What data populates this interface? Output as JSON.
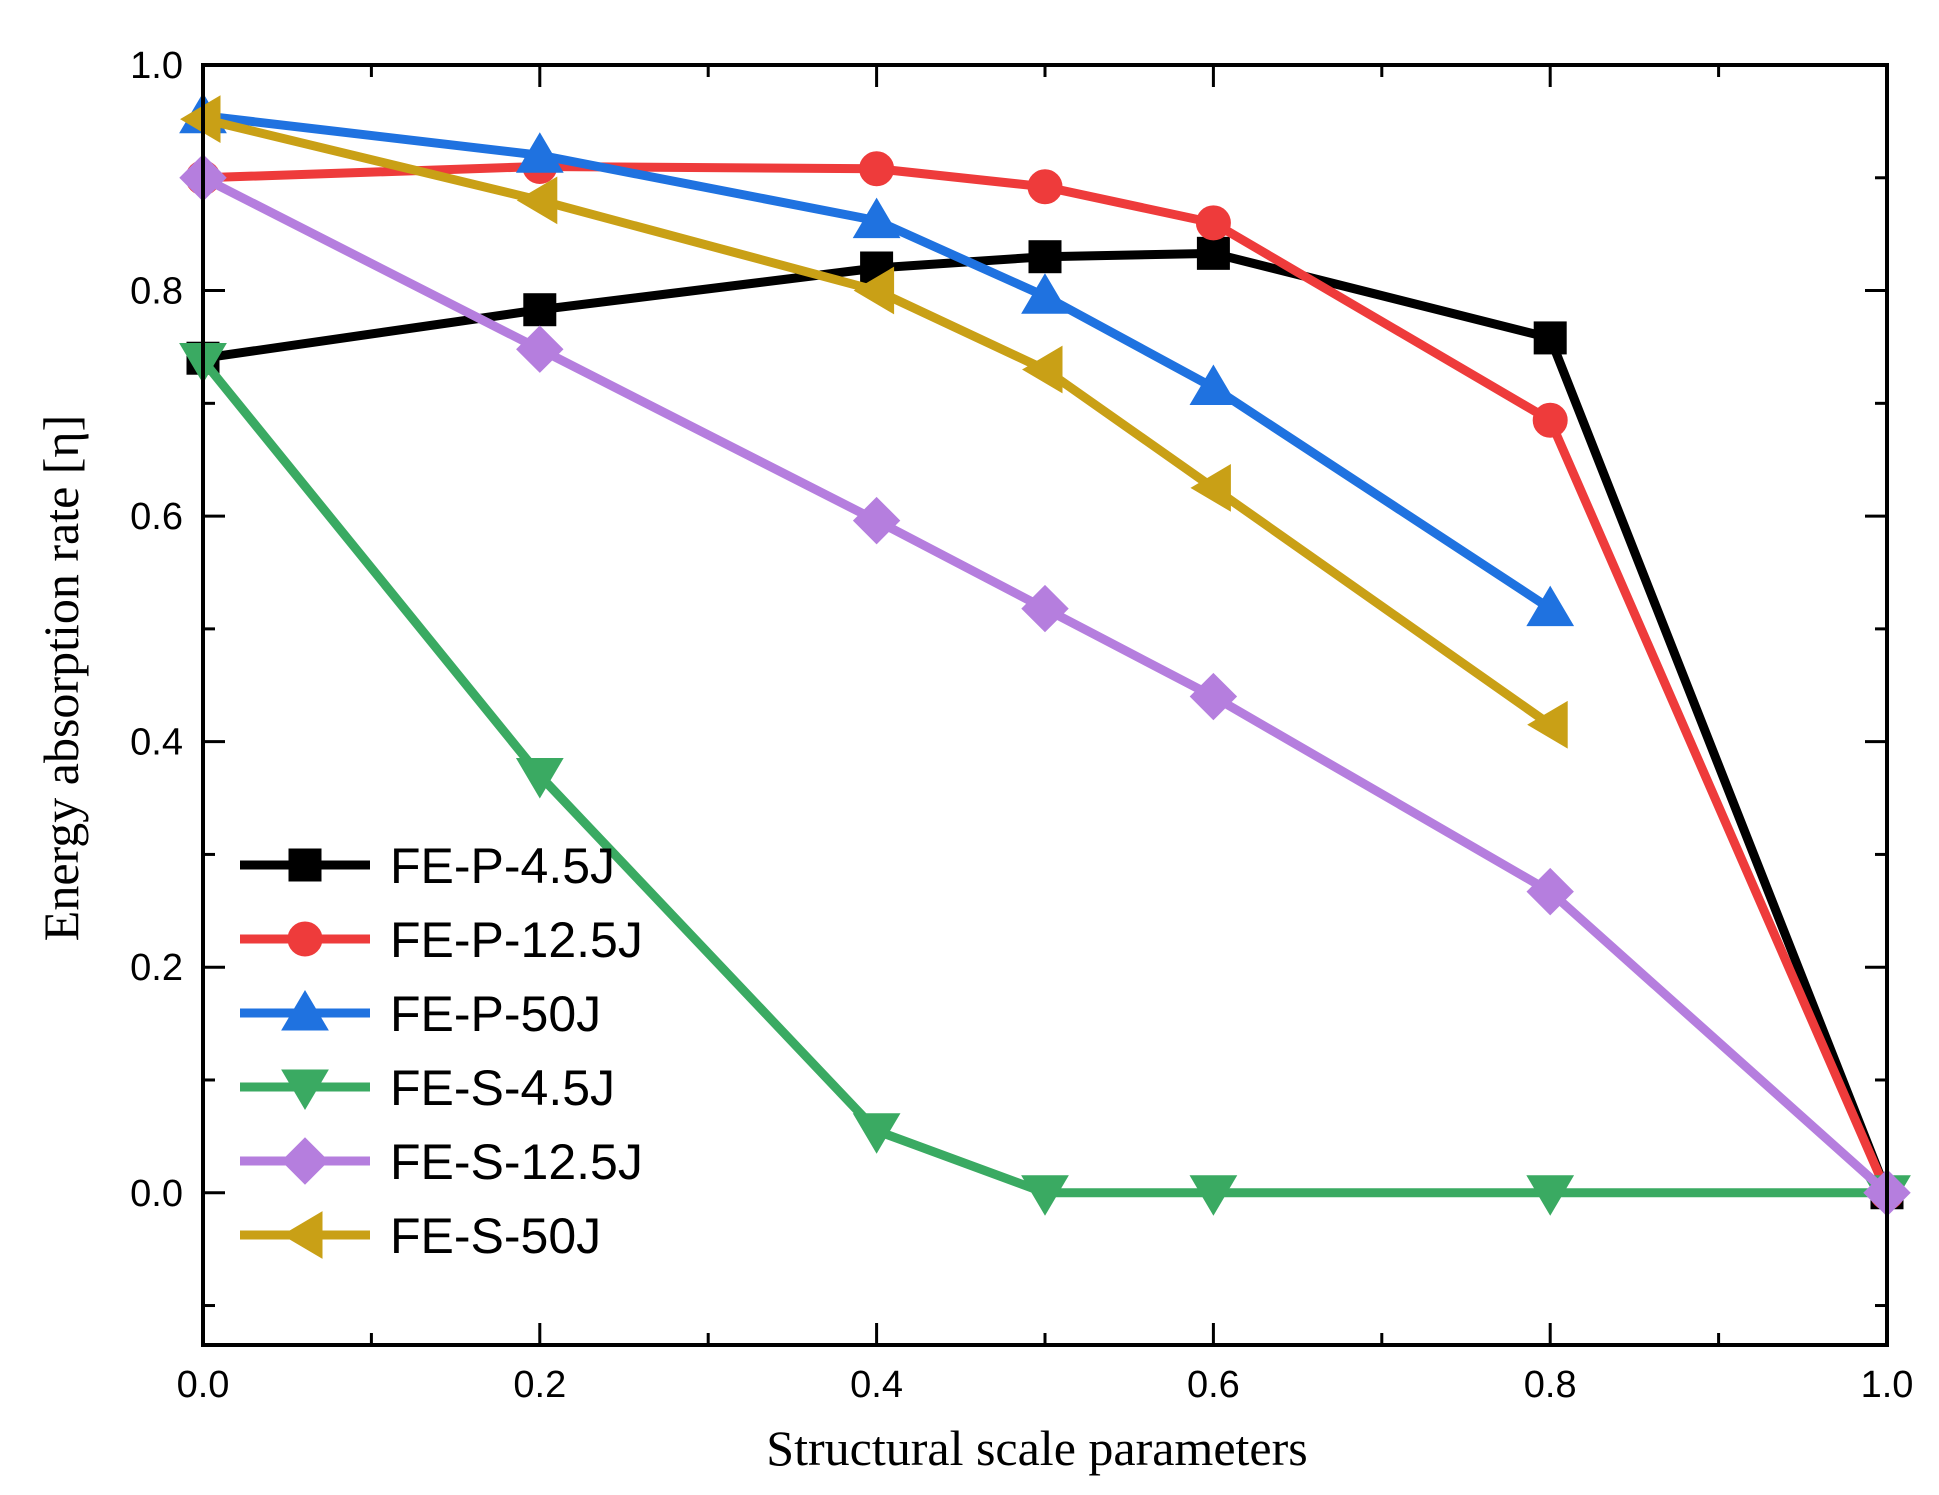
{
  "chart_data": {
    "type": "line",
    "title": "",
    "xlabel": "Structural scale parameters",
    "ylabel": "Energy absorption rate [η]",
    "xlim": [
      0.0,
      1.0
    ],
    "ylim": [
      -0.135,
      1.0
    ],
    "xticks": [
      0.0,
      0.2,
      0.4,
      0.6,
      0.8,
      1.0
    ],
    "xtick_labels": [
      "0.0",
      "0.2",
      "0.4",
      "0.6",
      "0.8",
      "1.0"
    ],
    "yticks": [
      0.0,
      0.2,
      0.4,
      0.6,
      0.8,
      1.0
    ],
    "ytick_labels": [
      "0.0",
      "0.2",
      "0.4",
      "0.6",
      "0.8",
      "1.0"
    ],
    "grid": false,
    "legend_position": "lower-left",
    "series": [
      {
        "name": "FE-P-4.5J",
        "color": "#000000",
        "marker": "square",
        "x": [
          0.0,
          0.2,
          0.4,
          0.5,
          0.6,
          0.8,
          1.0
        ],
        "values": [
          0.74,
          0.783,
          0.82,
          0.83,
          0.833,
          0.758,
          0.0
        ]
      },
      {
        "name": "FE-P-12.5J",
        "color": "#ee3b3b",
        "marker": "circle",
        "x": [
          0.0,
          0.2,
          0.4,
          0.5,
          0.6,
          0.8,
          1.0
        ],
        "values": [
          0.9,
          0.91,
          0.908,
          0.892,
          0.86,
          0.685,
          0.0
        ]
      },
      {
        "name": "FE-P-50J",
        "color": "#1f72e0",
        "marker": "triangle-up",
        "x": [
          0.0,
          0.2,
          0.4,
          0.5,
          0.6,
          0.8
        ],
        "values": [
          0.955,
          0.92,
          0.862,
          0.795,
          0.714,
          0.518
        ]
      },
      {
        "name": "FE-S-4.5J",
        "color": "#3aaa62",
        "marker": "triangle-down",
        "x": [
          0.0,
          0.2,
          0.4,
          0.5,
          0.6,
          0.8,
          1.0
        ],
        "values": [
          0.738,
          0.37,
          0.055,
          0.0,
          0.0,
          0.0,
          0.0
        ]
      },
      {
        "name": "FE-S-12.5J",
        "color": "#b57ede",
        "marker": "diamond",
        "x": [
          0.0,
          0.2,
          0.4,
          0.5,
          0.6,
          0.8,
          1.0
        ],
        "values": [
          0.9,
          0.748,
          0.596,
          0.518,
          0.44,
          0.267,
          0.0
        ]
      },
      {
        "name": "FE-S-50J",
        "color": "#c9a016",
        "marker": "triangle-left",
        "x": [
          0.0,
          0.2,
          0.4,
          0.5,
          0.6,
          0.8
        ],
        "values": [
          0.952,
          0.88,
          0.8,
          0.73,
          0.625,
          0.415
        ]
      }
    ]
  }
}
